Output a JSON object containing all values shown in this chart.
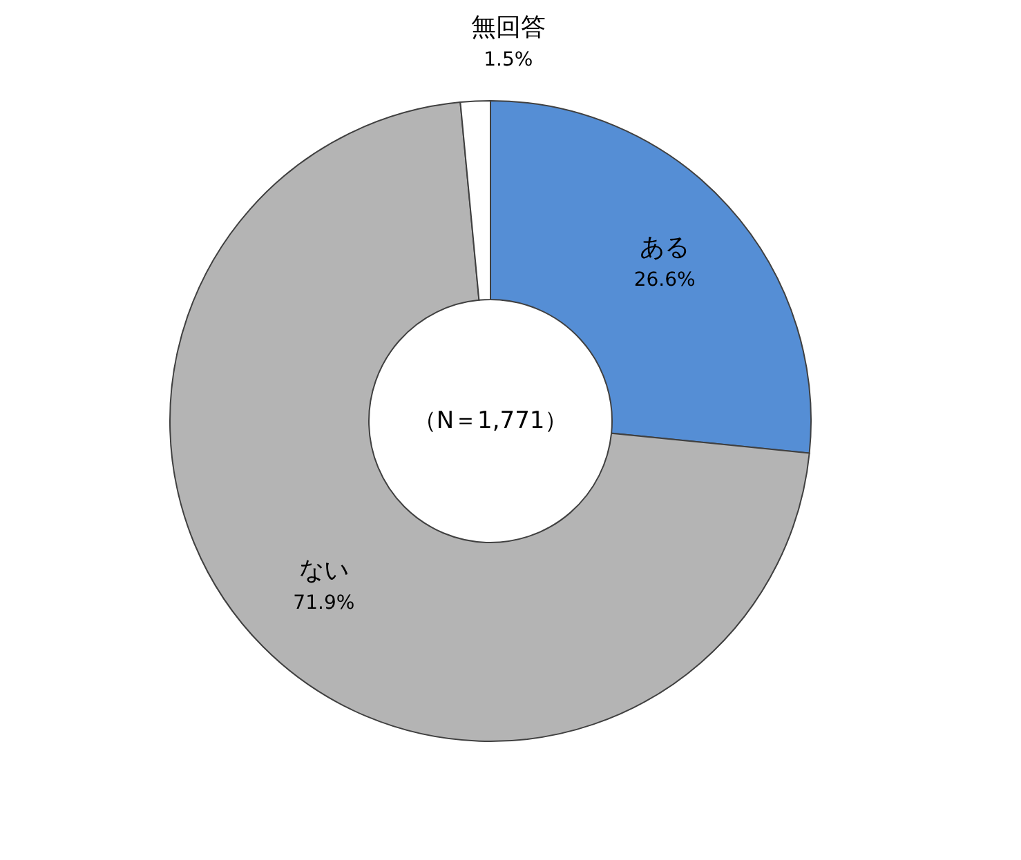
{
  "chart_data": {
    "type": "donut",
    "categories": [
      "ある",
      "ない",
      "無回答"
    ],
    "values": [
      26.6,
      71.9,
      1.5
    ],
    "colors": [
      "#558ed5",
      "#b4b4b4",
      "#ffffff"
    ],
    "value_labels": [
      "26.6%",
      "71.9%",
      "1.5%"
    ],
    "legend": false,
    "annotations": [
      "（N＝1,771）"
    ]
  }
}
